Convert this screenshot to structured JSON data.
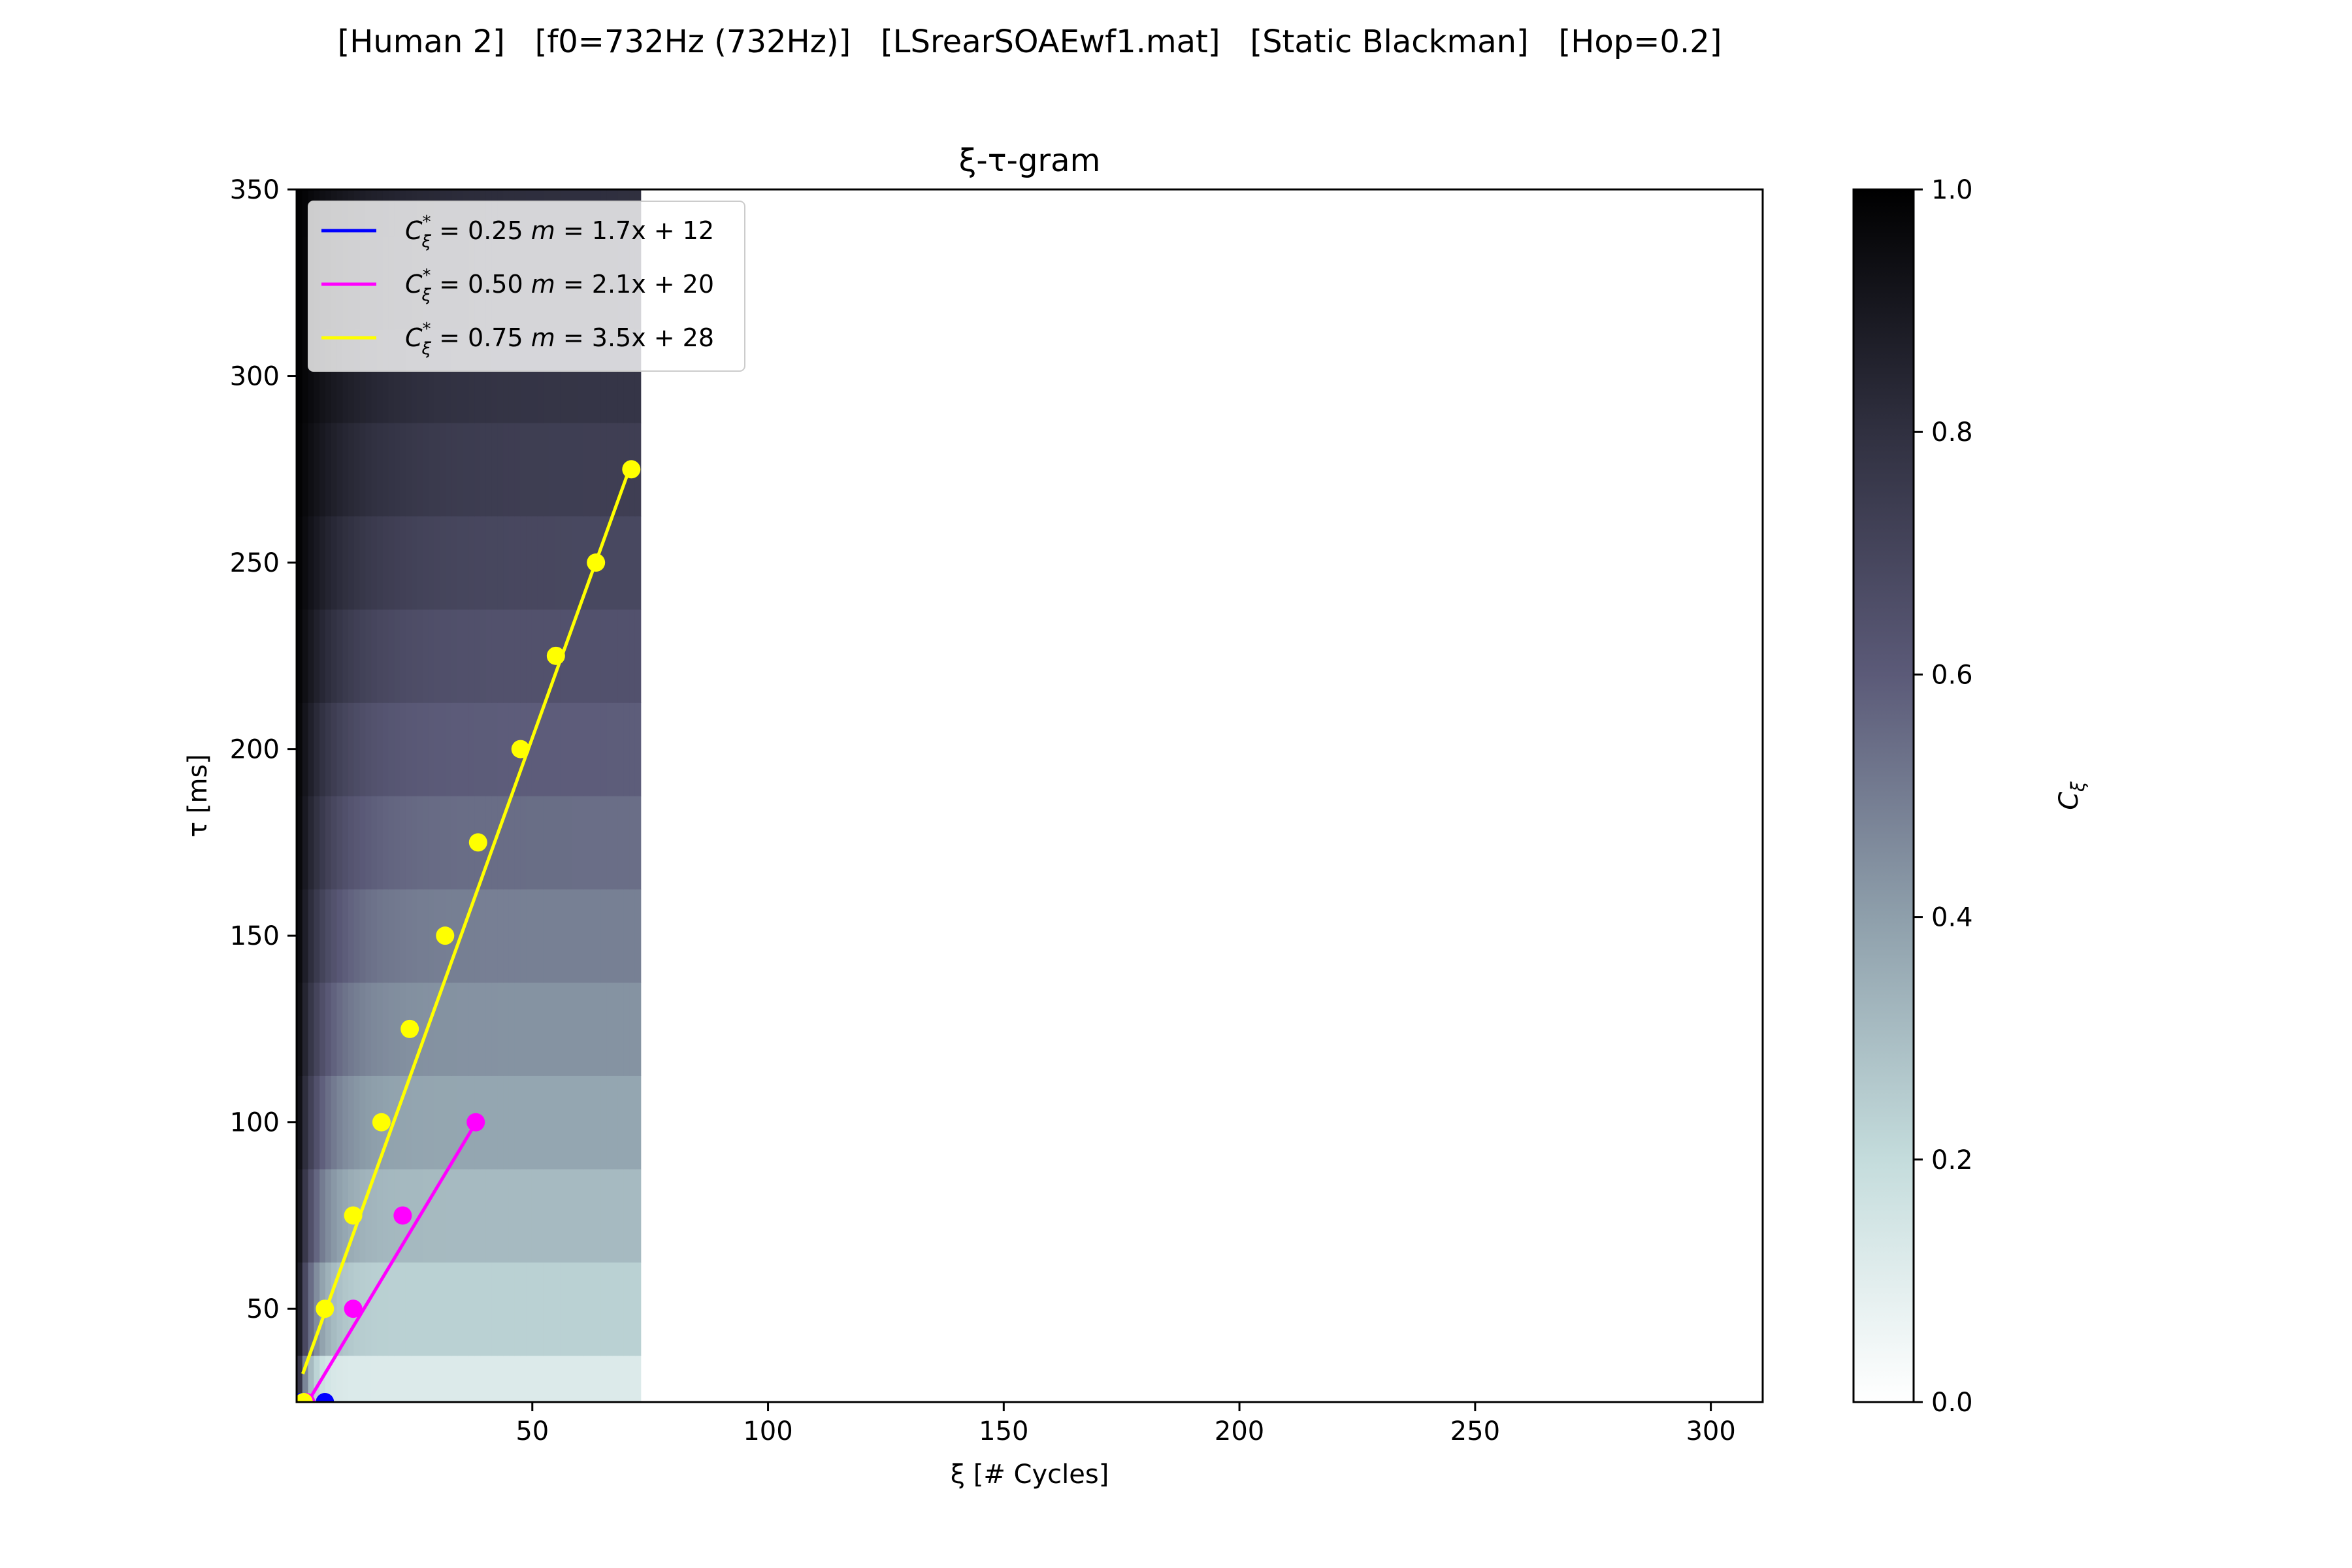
{
  "suptitle": "[Human 2]   [f0=732Hz (732Hz)]   [LSrearSOAEwf1.mat]   [Static Blackman]   [Hop=0.2]",
  "chart_data": {
    "type": "heatmap",
    "title": "ξ-τ-gram",
    "xlabel": "ξ [# Cycles]",
    "ylabel": "τ [ms]",
    "xlim": [
      0,
      311
    ],
    "ylim": [
      25,
      350
    ],
    "xticks": [
      50,
      100,
      150,
      200,
      250,
      300
    ],
    "yticks": [
      50,
      100,
      150,
      200,
      250,
      300,
      350
    ],
    "heatmap": {
      "x_extent": [
        0,
        73
      ],
      "tau_rows": [
        25,
        50,
        75,
        100,
        125,
        150,
        175,
        200,
        225,
        250,
        275,
        300,
        325,
        350
      ],
      "colormap": "bone_r",
      "note_values_estimated": true
    },
    "colorbar": {
      "label": "C_ξ",
      "range": [
        0,
        1
      ],
      "ticks": [
        "0.0",
        "0.2",
        "0.4",
        "0.6",
        "0.8",
        "1.0"
      ]
    },
    "legend_position": "top-left",
    "series": [
      {
        "name": "C*_ξ = 0.25  m = 1.7x + 12",
        "legend_label": "= 0.25",
        "legend_eq": "= 1.7x + 12",
        "color": "#0000ff",
        "slope": 1.7,
        "intercept": 12,
        "fit_x": [
          1,
          7
        ],
        "points": [
          [
            1,
            25
          ],
          [
            6,
            25
          ]
        ]
      },
      {
        "name": "C*_ξ = 0.50  m = 2.1x + 20",
        "legend_label": "= 0.50",
        "legend_eq": "= 2.1x + 20",
        "color": "#ff00ff",
        "slope": 2.1,
        "intercept": 20,
        "fit_x": [
          2.5,
          38.5
        ],
        "points": [
          [
            2,
            25
          ],
          [
            12,
            50
          ],
          [
            22.5,
            75
          ],
          [
            38,
            100
          ]
        ]
      },
      {
        "name": "C*_ξ = 0.75  m = 3.5x + 28",
        "legend_label": "= 0.75",
        "legend_eq": "= 3.5x + 28",
        "color": "#ffff00",
        "slope": 3.5,
        "intercept": 28,
        "fit_x": [
          1.3,
          70.6
        ],
        "points": [
          [
            1.5,
            25
          ],
          [
            6,
            50
          ],
          [
            12,
            75
          ],
          [
            18,
            100
          ],
          [
            24,
            125
          ],
          [
            31.5,
            150
          ],
          [
            38.5,
            175
          ],
          [
            47.5,
            200
          ],
          [
            55,
            225
          ],
          [
            63.5,
            250
          ],
          [
            71,
            275
          ]
        ]
      }
    ]
  }
}
